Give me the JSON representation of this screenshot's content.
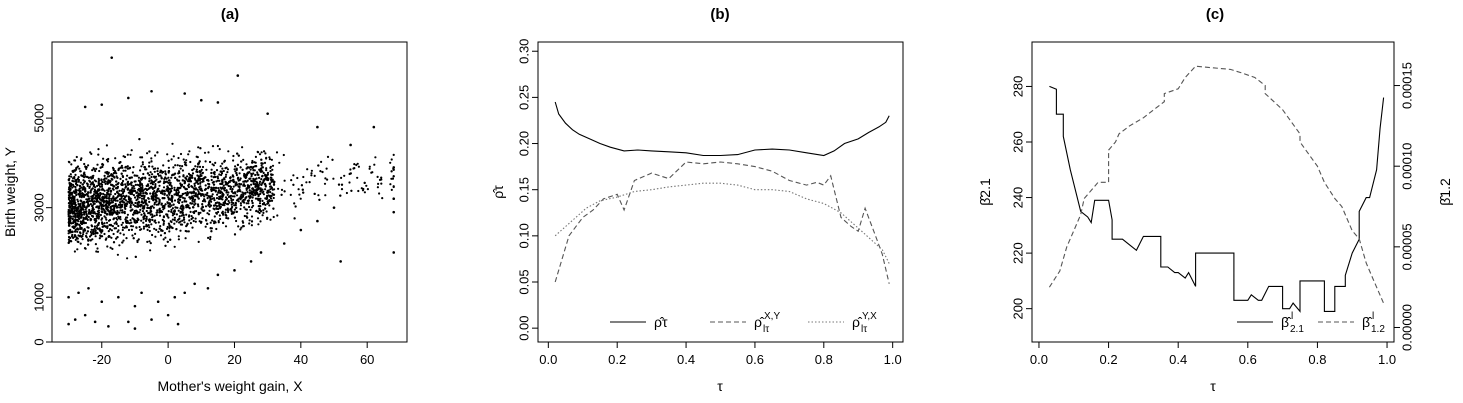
{
  "chart_data": [
    {
      "type": "scatter",
      "title": "(a)",
      "xlabel": "Mother's weight gain, X",
      "ylabel": "Birth weight, Y",
      "xlim": [
        -35,
        72
      ],
      "ylim": [
        0,
        6700
      ],
      "xticks": [
        -20,
        0,
        20,
        40,
        60
      ],
      "yticks": [
        0,
        1000,
        3000,
        5000
      ],
      "points": [
        [
          -17,
          6350
        ],
        [
          21,
          5950
        ],
        [
          -5,
          5600
        ],
        [
          5,
          5550
        ],
        [
          -12,
          5450
        ],
        [
          10,
          5400
        ],
        [
          -25,
          5250
        ],
        [
          -20,
          5300
        ],
        [
          15,
          5350
        ],
        [
          30,
          5100
        ],
        [
          45,
          4800
        ],
        [
          62,
          4800
        ],
        [
          55,
          4400
        ],
        [
          68,
          3900
        ],
        [
          68,
          3200
        ],
        [
          68,
          2900
        ],
        [
          52,
          1800
        ],
        [
          68,
          2000
        ],
        [
          -30,
          400
        ],
        [
          -28,
          500
        ],
        [
          -25,
          600
        ],
        [
          -22,
          450
        ],
        [
          -18,
          350
        ],
        [
          -12,
          450
        ],
        [
          -10,
          300
        ],
        [
          -5,
          500
        ],
        [
          0,
          600
        ],
        [
          3,
          400
        ],
        [
          -30,
          1000
        ],
        [
          -27,
          1100
        ],
        [
          -24,
          1200
        ],
        [
          -20,
          900
        ],
        [
          -15,
          1000
        ],
        [
          -10,
          800
        ],
        [
          -8,
          1100
        ],
        [
          -3,
          900
        ],
        [
          2,
          1000
        ],
        [
          5,
          1100
        ],
        [
          8,
          1300
        ],
        [
          12,
          1200
        ],
        [
          15,
          1500
        ],
        [
          20,
          1600
        ],
        [
          25,
          1800
        ],
        [
          28,
          2000
        ],
        [
          35,
          2200
        ],
        [
          40,
          2500
        ],
        [
          45,
          2700
        ],
        [
          50,
          3000
        ]
      ]
    },
    {
      "type": "line",
      "title": "(b)",
      "xlabel": "τ",
      "ylabel": "ρ̂τ",
      "xlim": [
        -0.03,
        1.03
      ],
      "ylim": [
        -0.015,
        0.31
      ],
      "xticks": [
        "0.0",
        "0.2",
        "0.4",
        "0.6",
        "0.8",
        "1.0"
      ],
      "yticks": [
        "0.00",
        "0.05",
        "0.10",
        "0.15",
        "0.20",
        "0.25",
        "0.30"
      ],
      "legend": {
        "position": "bottom",
        "labels": [
          "ρ̂τ",
          "ρ̂",
          "ρ̂"
        ],
        "supers": [
          "",
          "X,Y",
          "Y,X"
        ],
        "subs": [
          "",
          "lτ",
          "lτ"
        ]
      },
      "series": [
        {
          "style": "solid",
          "x": [
            0.02,
            0.03,
            0.05,
            0.07,
            0.09,
            0.12,
            0.15,
            0.18,
            0.22,
            0.26,
            0.3,
            0.35,
            0.4,
            0.45,
            0.5,
            0.55,
            0.6,
            0.65,
            0.7,
            0.75,
            0.8,
            0.83,
            0.86,
            0.9,
            0.93,
            0.96,
            0.98,
            0.99
          ],
          "y": [
            0.245,
            0.232,
            0.222,
            0.215,
            0.21,
            0.205,
            0.2,
            0.196,
            0.192,
            0.193,
            0.192,
            0.191,
            0.19,
            0.187,
            0.187,
            0.188,
            0.193,
            0.194,
            0.193,
            0.19,
            0.187,
            0.192,
            0.2,
            0.205,
            0.212,
            0.218,
            0.223,
            0.23
          ]
        },
        {
          "style": "dashed",
          "x": [
            0.02,
            0.04,
            0.06,
            0.08,
            0.1,
            0.13,
            0.16,
            0.2,
            0.22,
            0.25,
            0.3,
            0.35,
            0.4,
            0.45,
            0.5,
            0.55,
            0.6,
            0.65,
            0.7,
            0.75,
            0.78,
            0.8,
            0.82,
            0.85,
            0.88,
            0.9,
            0.92,
            0.95,
            0.97,
            0.99
          ],
          "y": [
            0.05,
            0.075,
            0.1,
            0.11,
            0.12,
            0.128,
            0.14,
            0.145,
            0.128,
            0.16,
            0.168,
            0.162,
            0.18,
            0.178,
            0.18,
            0.178,
            0.175,
            0.17,
            0.16,
            0.155,
            0.158,
            0.155,
            0.165,
            0.12,
            0.11,
            0.105,
            0.13,
            0.1,
            0.08,
            0.048
          ]
        },
        {
          "style": "dotted",
          "x": [
            0.02,
            0.05,
            0.08,
            0.11,
            0.15,
            0.2,
            0.25,
            0.3,
            0.35,
            0.4,
            0.45,
            0.5,
            0.55,
            0.6,
            0.65,
            0.7,
            0.75,
            0.8,
            0.85,
            0.88,
            0.91,
            0.94,
            0.97,
            0.99
          ],
          "y": [
            0.1,
            0.11,
            0.12,
            0.13,
            0.138,
            0.142,
            0.148,
            0.15,
            0.153,
            0.155,
            0.157,
            0.157,
            0.155,
            0.15,
            0.15,
            0.148,
            0.14,
            0.135,
            0.125,
            0.115,
            0.105,
            0.095,
            0.085,
            0.07
          ]
        }
      ]
    },
    {
      "type": "line",
      "title": "(c)",
      "xlabel": "τ",
      "ylabel": "β̂2.1",
      "y2label": "β̂1.2",
      "xlim": [
        -0.02,
        1.02
      ],
      "ylim": [
        188,
        296
      ],
      "y2lim": [
        -9e-06,
        0.000177
      ],
      "xticks": [
        "0.0",
        "0.2",
        "0.4",
        "0.6",
        "0.8",
        "1.0"
      ],
      "yticks": [
        "200",
        "220",
        "240",
        "260",
        "280"
      ],
      "y2ticks": [
        "0.00000",
        "0.00005",
        "0.00010",
        "0.00015"
      ],
      "legend": {
        "position": "bottom-right",
        "labels": [
          "β̂",
          "β̂"
        ],
        "supers": [
          "l",
          "l"
        ],
        "subs": [
          "2.1",
          "1.2"
        ]
      },
      "series": [
        {
          "style": "solid",
          "axis": "left",
          "x": [
            0.03,
            0.05,
            0.05,
            0.07,
            0.07,
            0.09,
            0.1,
            0.12,
            0.14,
            0.15,
            0.16,
            0.16,
            0.2,
            0.21,
            0.21,
            0.24,
            0.26,
            0.28,
            0.3,
            0.32,
            0.32,
            0.35,
            0.35,
            0.37,
            0.39,
            0.4,
            0.42,
            0.43,
            0.45,
            0.45,
            0.55,
            0.56,
            0.56,
            0.6,
            0.61,
            0.63,
            0.64,
            0.66,
            0.66,
            0.7,
            0.7,
            0.72,
            0.73,
            0.75,
            0.75,
            0.82,
            0.82,
            0.85,
            0.85,
            0.88,
            0.88,
            0.9,
            0.92,
            0.92,
            0.94,
            0.95,
            0.97,
            0.98,
            0.99
          ],
          "y": [
            280,
            279,
            270,
            270,
            262,
            250,
            245,
            235,
            233,
            231,
            239,
            239,
            239,
            232,
            225,
            225,
            223,
            221,
            226,
            226,
            226,
            226,
            215,
            215,
            213,
            213,
            211,
            213,
            208,
            220,
            220,
            220,
            203,
            203,
            205,
            203,
            203,
            208,
            208,
            208,
            200,
            200,
            202,
            199,
            210,
            210,
            199,
            199,
            208,
            208,
            212,
            220,
            225,
            235,
            240,
            240,
            250,
            265,
            276
          ]
        },
        {
          "style": "dashed",
          "axis": "right",
          "x": [
            0.03,
            0.06,
            0.08,
            0.1,
            0.12,
            0.13,
            0.15,
            0.17,
            0.2,
            0.2,
            0.22,
            0.23,
            0.26,
            0.3,
            0.33,
            0.36,
            0.36,
            0.4,
            0.42,
            0.45,
            0.5,
            0.55,
            0.58,
            0.62,
            0.65,
            0.65,
            0.7,
            0.75,
            0.75,
            0.8,
            0.82,
            0.85,
            0.87,
            0.9,
            0.92,
            0.94,
            0.96,
            0.98,
            0.99
          ],
          "y": [
            2.5e-05,
            3.5e-05,
            5e-05,
            6e-05,
            7e-05,
            8e-05,
            8.5e-05,
            9e-05,
            9e-05,
            0.00011,
            0.000115,
            0.00012,
            0.000125,
            0.00013,
            0.000135,
            0.00014,
            0.000145,
            0.000148,
            0.000155,
            0.000162,
            0.000161,
            0.00016,
            0.000158,
            0.000155,
            0.00015,
            0.000145,
            0.000135,
            0.00012,
            0.000115,
            0.0001,
            9e-05,
            8e-05,
            7.5e-05,
            6e-05,
            5.5e-05,
            4e-05,
            3e-05,
            2e-05,
            1.5e-05
          ]
        }
      ]
    }
  ]
}
